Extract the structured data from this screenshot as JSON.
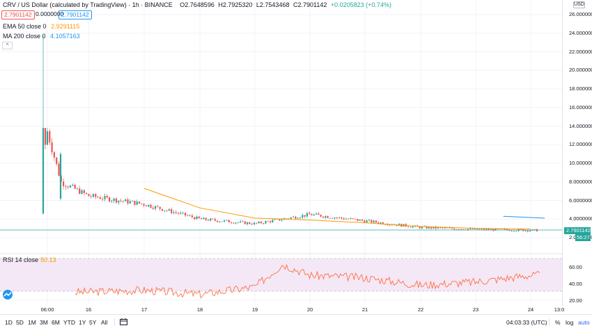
{
  "legend": {
    "symbol": "CRV / US Dollar (calculated by TradingView) · 1h · BINANCE",
    "open": "O2.7648596",
    "high": "H2.7925320",
    "low": "L2.7543468",
    "close": "C2.7901142",
    "change": "+0.0205823 (+0.74%)",
    "last_box": "2.7901142",
    "mid_box": "0.0000000",
    "bid_box": "2.7901142",
    "ema_label": "EMA 50 close 0",
    "ema_value": "2.9291115",
    "ma_label": "MA 200 close 0",
    "ma_value": "4.1057163",
    "collapse_glyph": "^"
  },
  "price_axis": {
    "currency": "USD",
    "labels": [
      "26.0000000",
      "24.0000000",
      "22.0000000",
      "20.0000000",
      "18.0000000",
      "16.0000000",
      "14.0000000",
      "12.0000000",
      "10.0000000",
      "8.0000000",
      "6.0000000",
      "4.0000000",
      "2.0000000"
    ],
    "last_price": "2.7901142",
    "countdown": "56:27"
  },
  "rsi": {
    "label": "RSI 14 close",
    "value": "50.13",
    "axis_labels": [
      "60.00",
      "40.00",
      "20.00"
    ]
  },
  "time_axis": {
    "labels": [
      "06:00",
      "16",
      "17",
      "18",
      "19",
      "20",
      "21",
      "22",
      "23",
      "24",
      "13:0"
    ]
  },
  "toolbar": {
    "timeframes": [
      "1D",
      "5D",
      "1M",
      "3M",
      "6M",
      "YTD",
      "1Y",
      "5Y",
      "All"
    ],
    "clock": "04:03:33 (UTC)",
    "percent": "%",
    "log": "log",
    "auto": "auto"
  },
  "colors": {
    "up": "#26a69a",
    "down": "#ef5350",
    "ema": "#ff9800",
    "ma": "#2196f3",
    "rsi_line": "#ff7043",
    "rsi_band": "#f3e5f5"
  },
  "icons": {
    "calendar": "calendar-icon",
    "gear": "gear-icon",
    "logo": "tradingview-logo"
  },
  "chart_data": {
    "type": "candlestick",
    "title": "CRV / US Dollar (calculated by TradingView) · 1h · BINANCE",
    "ylim": [
      0,
      26.5
    ],
    "yscale": "linear",
    "grid": true,
    "series": [
      {
        "name": "EMA 50 close 0",
        "x": [
          "17 00:00",
          "18 00:00",
          "19 00:00",
          "20 00:00",
          "21 00:00",
          "22 00:00",
          "23 00:00",
          "24 00:00"
        ],
        "values": [
          7.3,
          5.2,
          4.1,
          3.9,
          3.6,
          3.2,
          3.0,
          2.93
        ]
      },
      {
        "name": "MA 200 close 0",
        "x": [
          "23 12:00",
          "24 06:00"
        ],
        "values": [
          4.3,
          4.1
        ]
      }
    ],
    "ohlc_daily_approx": {
      "x": [
        "15 06:00",
        "15 12:00",
        "16",
        "17",
        "18",
        "19",
        "20",
        "21",
        "22",
        "23",
        "24"
      ],
      "close": [
        13.5,
        8.0,
        6.5,
        5.6,
        4.0,
        3.5,
        4.5,
        3.8,
        3.1,
        2.9,
        2.79
      ]
    },
    "rsi": {
      "name": "RSI 14 close",
      "ylim": [
        15,
        72
      ],
      "band": [
        30,
        70
      ],
      "x": [
        "16",
        "17",
        "18",
        "19",
        "19 12:00",
        "20",
        "21",
        "22",
        "23",
        "24"
      ],
      "values": [
        30,
        32,
        27,
        36,
        63,
        50,
        47,
        38,
        42,
        50
      ]
    }
  }
}
